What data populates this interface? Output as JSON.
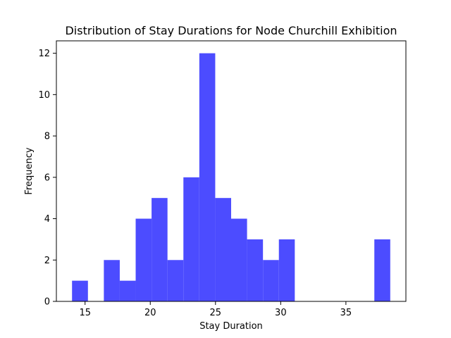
{
  "chart_data": {
    "type": "bar",
    "subtype": "histogram",
    "title": "Distribution of Stay Durations for Node Churchill Exhibition",
    "xlabel": "Stay Duration",
    "ylabel": "Frequency",
    "bin_start": 14.0,
    "bin_width": 1.22,
    "counts": [
      1,
      0,
      2,
      1,
      4,
      5,
      2,
      6,
      12,
      5,
      4,
      3,
      2,
      3,
      0,
      0,
      0,
      0,
      0,
      3
    ],
    "xlim": [
      12.8,
      39.6
    ],
    "ylim": [
      0,
      12.6
    ],
    "xticks": [
      15,
      20,
      25,
      30,
      35
    ],
    "yticks": [
      0,
      2,
      4,
      6,
      8,
      10,
      12
    ],
    "bar_color": "#4c4cff",
    "grid": false
  }
}
